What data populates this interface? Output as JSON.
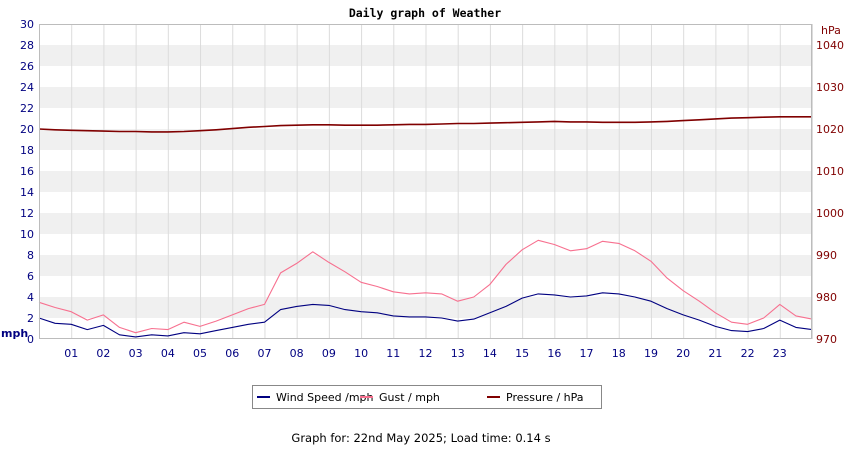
{
  "chart_data": {
    "type": "line",
    "title": "Daily graph of Weather",
    "footer": "Graph for: 22nd May 2025; Load time: 0.14 s",
    "grid": true,
    "legend_position": "bottom-center",
    "left_axis": {
      "unit": "mph",
      "ylim": [
        0,
        30
      ],
      "ticks": [
        "0",
        "2",
        "4",
        "6",
        "8",
        "10",
        "12",
        "14",
        "16",
        "18",
        "20",
        "22",
        "24",
        "26",
        "28",
        "30"
      ],
      "color": "#000080"
    },
    "right_axis": {
      "unit": "hPa",
      "ylim": [
        970,
        1045
      ],
      "ticks": [
        "970",
        "980",
        "990",
        "1000",
        "1010",
        "1020",
        "1030",
        "1040"
      ],
      "color": "#800000"
    },
    "x_axis": {
      "xlim": [
        0,
        24
      ],
      "ticks": [
        "01",
        "02",
        "03",
        "04",
        "05",
        "06",
        "07",
        "08",
        "09",
        "10",
        "11",
        "12",
        "13",
        "14",
        "15",
        "16",
        "17",
        "18",
        "19",
        "20",
        "21",
        "22",
        "23"
      ]
    },
    "x": [
      0,
      0.5,
      1,
      1.5,
      2,
      2.5,
      3,
      3.5,
      4,
      4.5,
      5,
      5.5,
      6,
      6.5,
      7,
      7.5,
      8,
      8.5,
      9,
      9.5,
      10,
      10.5,
      11,
      11.5,
      12,
      12.5,
      13,
      13.5,
      14,
      14.5,
      15,
      15.5,
      16,
      16.5,
      17,
      17.5,
      18,
      18.5,
      19,
      19.5,
      20,
      20.5,
      21,
      21.5,
      22,
      22.5,
      23,
      23.5,
      24
    ],
    "series": [
      {
        "name": "Wind Speed /mph",
        "axis": "left",
        "color": "#000080",
        "values": [
          2.0,
          1.5,
          1.4,
          0.9,
          1.3,
          0.4,
          0.2,
          0.4,
          0.3,
          0.6,
          0.5,
          0.8,
          1.1,
          1.4,
          1.6,
          2.8,
          3.1,
          3.3,
          3.2,
          2.8,
          2.6,
          2.5,
          2.2,
          2.1,
          2.1,
          2.0,
          1.7,
          1.9,
          2.5,
          3.1,
          3.9,
          4.3,
          4.2,
          4.0,
          4.1,
          4.4,
          4.3,
          4.0,
          3.6,
          2.9,
          2.3,
          1.8,
          1.2,
          0.8,
          0.7,
          1.0,
          1.8,
          1.1,
          0.9
        ]
      },
      {
        "name": "Gust / mph",
        "axis": "left",
        "color": "#f7708f",
        "values": [
          3.5,
          3.0,
          2.6,
          1.8,
          2.3,
          1.1,
          0.6,
          1.0,
          0.9,
          1.6,
          1.2,
          1.7,
          2.3,
          2.9,
          3.3,
          6.3,
          7.2,
          8.3,
          7.3,
          6.4,
          5.4,
          5.0,
          4.5,
          4.3,
          4.4,
          4.3,
          3.6,
          4.0,
          5.2,
          7.1,
          8.5,
          9.4,
          9.0,
          8.4,
          8.6,
          9.3,
          9.1,
          8.4,
          7.4,
          5.8,
          4.6,
          3.6,
          2.5,
          1.6,
          1.4,
          2.0,
          3.3,
          2.2,
          1.9
        ]
      },
      {
        "name": "Pressure / hPa",
        "axis": "right",
        "color": "#800000",
        "values": [
          1020.0,
          1019.8,
          1019.7,
          1019.6,
          1019.5,
          1019.4,
          1019.4,
          1019.3,
          1019.3,
          1019.4,
          1019.6,
          1019.8,
          1020.1,
          1020.4,
          1020.6,
          1020.8,
          1020.9,
          1021.0,
          1021.0,
          1020.9,
          1020.9,
          1020.9,
          1021.0,
          1021.1,
          1021.1,
          1021.2,
          1021.3,
          1021.3,
          1021.4,
          1021.5,
          1021.6,
          1021.7,
          1021.8,
          1021.7,
          1021.7,
          1021.6,
          1021.6,
          1021.6,
          1021.7,
          1021.8,
          1022.0,
          1022.2,
          1022.4,
          1022.6,
          1022.7,
          1022.8,
          1022.9,
          1022.9,
          1022.9
        ]
      }
    ]
  }
}
